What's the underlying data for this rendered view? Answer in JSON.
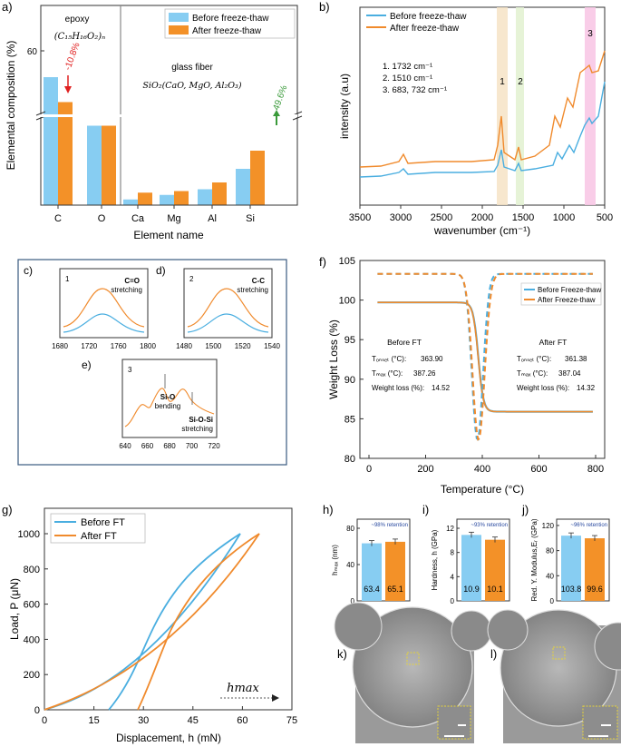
{
  "colors": {
    "before": "#87cdf2",
    "before_line": "#4aaee0",
    "after": "#f39128",
    "after_line": "#f08a2c"
  },
  "chart_data": [
    {
      "panel": "a)",
      "type": "bar",
      "xlabel": "Element name",
      "ylabel": "Elemental composition (%)",
      "categories": [
        "C",
        "O",
        "Ca",
        "Mg",
        "Al",
        "Si"
      ],
      "series": [
        {
          "name": "Before freeze-thaw",
          "values": [
            62.0,
            35.0,
            2.5,
            4.5,
            7.0,
            16.0
          ]
        },
        {
          "name": "After freeze-thaw",
          "values": [
            55.3,
            35.0,
            5.5,
            6.2,
            10.0,
            24.0
          ]
        }
      ],
      "ytick": "60",
      "annotations": {
        "epoxy_label": "epoxy",
        "epoxy_formula": "(C₁₅H₁₆O₂)ₙ",
        "glass_label": "glass fiber",
        "glass_formula": "SiO₂(CaO, MgO, Al₂O₃)",
        "c_change": "-10.8%",
        "si_change": "49.6%"
      }
    },
    {
      "panel": "b)",
      "type": "line",
      "xlabel": "wavenumber (cm⁻¹)",
      "ylabel": "intensity (a.u)",
      "xticks": [
        "3500",
        "3000",
        "2500",
        "2000",
        "1500",
        "1000",
        "500"
      ],
      "legend": [
        "Before freeze-thaw",
        "After freeze-thaw"
      ],
      "bands": [
        "1",
        "2",
        "3"
      ],
      "band_list": [
        "1.    1732 cm⁻¹",
        "2.    1510 cm⁻¹",
        "3.    683, 732 cm⁻¹"
      ]
    },
    {
      "panel": "c)",
      "type": "line",
      "title": "C=O",
      "subtitle": "stretching",
      "index": "1",
      "xticks": [
        "1680",
        "1720",
        "1760",
        "1800"
      ]
    },
    {
      "panel": "d)",
      "type": "line",
      "title": "C-C",
      "subtitle": "stretching",
      "index": "2",
      "xticks": [
        "1480",
        "1500",
        "1520",
        "1540"
      ]
    },
    {
      "panel": "e)",
      "type": "line",
      "index": "3",
      "label1": "Si-O",
      "label1b": "bending",
      "label2": "Si-O-Si",
      "label2b": "stretching",
      "xticks": [
        "640",
        "660",
        "680",
        "700",
        "720"
      ]
    },
    {
      "panel": "f)",
      "type": "line",
      "xlabel": "Temperature (°C)",
      "ylabel": "Weight Loss (%)",
      "xticks": [
        "0",
        "200",
        "400",
        "600",
        "800"
      ],
      "yticks": [
        "80",
        "85",
        "90",
        "95",
        "100",
        "105"
      ],
      "legend": [
        "Before Freeze-thaw",
        "After Freeze-thaw"
      ],
      "before": {
        "title": "Before FT",
        "t_onset_label": "Tₒₙₛₑₜ (°C):",
        "t_onset": "363.90",
        "t_max_label": "Tₘₐₓ (°C):",
        "t_max": "387.26",
        "wl_label": "Weight loss (%):",
        "wl": "14.52"
      },
      "after": {
        "title": "After FT",
        "t_onset_label": "Tₒₙₛₑₜ (°C):",
        "t_onset": "361.38",
        "t_max_label": "Tₘₐₓ (°C):",
        "t_max": "387.04",
        "wl_label": "Weight loss (%):",
        "wl": "14.32"
      }
    },
    {
      "panel": "g)",
      "type": "line",
      "xlabel": "Displacement, h (mN)",
      "ylabel": "Load, P (μN)",
      "xticks": [
        "0",
        "15",
        "30",
        "45",
        "60",
        "75"
      ],
      "yticks": [
        "0",
        "200",
        "400",
        "600",
        "800",
        "1000"
      ],
      "legend": [
        "Before FT",
        "After FT"
      ],
      "hmax_label": "hmax"
    },
    {
      "panel": "h)",
      "type": "bar",
      "ylabel": "hₘₐₓ (nm)",
      "yticks": [
        "0",
        "40",
        "80"
      ],
      "values": [
        63.4,
        65.1
      ],
      "labels": [
        "63.4",
        "65.1"
      ],
      "note": "~98% retention"
    },
    {
      "panel": "i)",
      "type": "bar",
      "ylabel": "Hardness, h (GPa)",
      "yticks": [
        "0",
        "4",
        "8",
        "12"
      ],
      "values": [
        10.9,
        10.1
      ],
      "labels": [
        "10.9",
        "10.1"
      ],
      "note": "~93% retention"
    },
    {
      "panel": "j)",
      "type": "bar",
      "ylabel": "Red. Y. Modulus,Eᵣ (GPa)",
      "yticks": [
        "0",
        "40",
        "80",
        "120"
      ],
      "values": [
        103.8,
        99.6
      ],
      "labels": [
        "103.8",
        "99.6"
      ],
      "note": "~96% retention"
    }
  ],
  "images": {
    "k_label": "k)",
    "l_label": "l)"
  }
}
